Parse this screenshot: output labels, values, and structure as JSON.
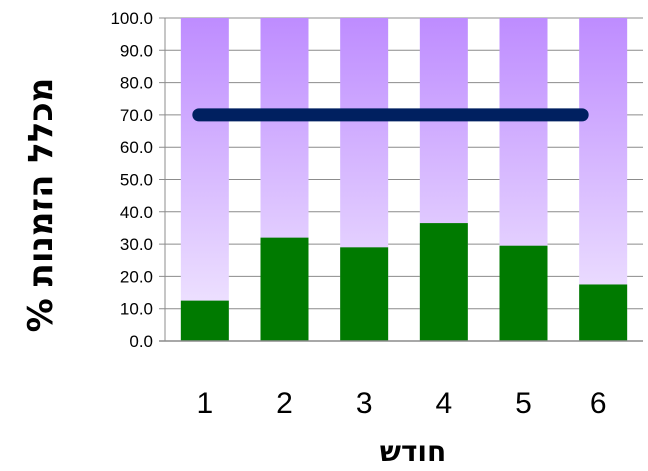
{
  "chart_data": {
    "type": "bar",
    "title": "",
    "categories": [
      "1",
      "2",
      "3",
      "4",
      "5",
      "6"
    ],
    "series": [
      {
        "name": "",
        "type": "bar",
        "values": [
          12.5,
          32.0,
          29.0,
          36.5,
          29.5,
          17.5
        ],
        "color": "#007A00"
      },
      {
        "name": "",
        "type": "bar-background",
        "values": [
          100,
          100,
          100,
          100,
          100,
          100
        ],
        "color_top": "#BE8CFF",
        "color_bottom": "#F3EBFF"
      },
      {
        "name": "",
        "type": "line",
        "values": [
          70,
          70,
          70,
          70,
          70,
          70
        ],
        "color": "#002060"
      }
    ],
    "ylim": [
      0,
      100
    ],
    "yticks": [
      "0.0",
      "10.0",
      "20.0",
      "30.0",
      "40.0",
      "50.0",
      "60.0",
      "70.0",
      "80.0",
      "90.0",
      "100.0"
    ],
    "xlabel": "חודש",
    "ylabel": "% מכלל הזמנות",
    "grid": true,
    "legend": "none",
    "colors": {
      "grid": "#8C8C8C",
      "axis": "#8C8C8C",
      "text": "#000000"
    }
  }
}
